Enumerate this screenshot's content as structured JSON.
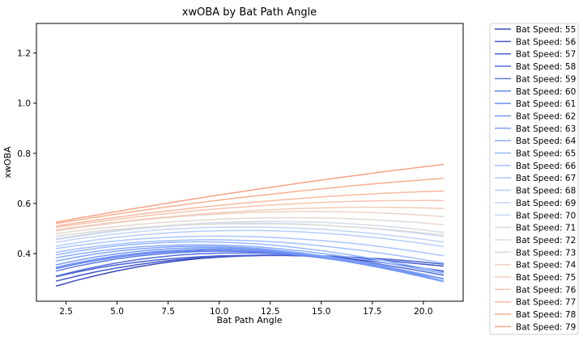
{
  "chart_data": {
    "type": "line",
    "title": "xwOBA by Bat Path Angle",
    "xlabel": "Bat Path Angle",
    "ylabel": "xwOBA",
    "xlim": [
      1.05,
      21.95
    ],
    "ylim": [
      0.21,
      1.318
    ],
    "xticks": [
      2.5,
      5.0,
      7.5,
      10.0,
      12.5,
      15.0,
      17.5,
      20.0
    ],
    "xtick_labels": [
      "2.5",
      "5.0",
      "7.5",
      "10.0",
      "12.5",
      "15.0",
      "17.5",
      "20.0"
    ],
    "yticks": [
      0.4,
      0.6,
      0.8,
      1.0,
      1.2
    ],
    "ytick_labels": [
      "0.4",
      "0.6",
      "0.8",
      "1.0",
      "1.2"
    ],
    "grid": false,
    "legend_position": "outside-right",
    "x": [
      2,
      3,
      4,
      5,
      6,
      7,
      8,
      9,
      10,
      11,
      12,
      13,
      14,
      15,
      16,
      17,
      18,
      19,
      20,
      21
    ],
    "series": [
      {
        "name": "Bat Speed: 55",
        "color": "#3b4cc0",
        "values": [
          0.27,
          0.293,
          0.313,
          0.331,
          0.347,
          0.36,
          0.371,
          0.38,
          0.386,
          0.39,
          0.392,
          0.393,
          0.391,
          0.387,
          0.381,
          0.373,
          0.364,
          0.353,
          0.342,
          0.33
        ]
      },
      {
        "name": "Bat Speed: 56",
        "color": "#4257c9",
        "values": [
          0.29,
          0.31,
          0.328,
          0.343,
          0.356,
          0.367,
          0.376,
          0.383,
          0.388,
          0.391,
          0.393,
          0.393,
          0.392,
          0.389,
          0.385,
          0.38,
          0.374,
          0.366,
          0.358,
          0.35
        ]
      },
      {
        "name": "Bat Speed: 57",
        "color": "#4a63d3",
        "values": [
          0.308,
          0.326,
          0.342,
          0.355,
          0.366,
          0.375,
          0.382,
          0.387,
          0.391,
          0.393,
          0.394,
          0.394,
          0.393,
          0.391,
          0.388,
          0.384,
          0.379,
          0.373,
          0.366,
          0.358
        ]
      },
      {
        "name": "Bat Speed: 58",
        "color": "#536edd",
        "values": [
          0.31,
          0.33,
          0.348,
          0.363,
          0.376,
          0.386,
          0.394,
          0.399,
          0.402,
          0.403,
          0.402,
          0.399,
          0.394,
          0.387,
          0.378,
          0.368,
          0.356,
          0.343,
          0.329,
          0.313
        ]
      },
      {
        "name": "Bat Speed: 59",
        "color": "#5b7ae5",
        "values": [
          0.33,
          0.349,
          0.365,
          0.379,
          0.39,
          0.398,
          0.404,
          0.408,
          0.41,
          0.409,
          0.406,
          0.401,
          0.394,
          0.385,
          0.374,
          0.362,
          0.348,
          0.333,
          0.317,
          0.3
        ]
      },
      {
        "name": "Bat Speed: 60",
        "color": "#6485ec",
        "values": [
          0.34,
          0.358,
          0.373,
          0.386,
          0.396,
          0.404,
          0.409,
          0.412,
          0.413,
          0.411,
          0.407,
          0.401,
          0.393,
          0.383,
          0.372,
          0.36,
          0.346,
          0.331,
          0.315,
          0.298
        ]
      },
      {
        "name": "Bat Speed: 61",
        "color": "#6e90f2",
        "values": [
          0.345,
          0.363,
          0.378,
          0.391,
          0.401,
          0.409,
          0.414,
          0.417,
          0.418,
          0.416,
          0.412,
          0.405,
          0.396,
          0.385,
          0.372,
          0.358,
          0.342,
          0.325,
          0.307,
          0.288
        ]
      },
      {
        "name": "Bat Speed: 62",
        "color": "#779af7",
        "values": [
          0.355,
          0.372,
          0.387,
          0.399,
          0.409,
          0.416,
          0.421,
          0.423,
          0.423,
          0.421,
          0.416,
          0.409,
          0.399,
          0.388,
          0.375,
          0.361,
          0.345,
          0.328,
          0.31,
          0.29
        ]
      },
      {
        "name": "Bat Speed: 63",
        "color": "#81a4fb",
        "values": [
          0.37,
          0.386,
          0.399,
          0.41,
          0.418,
          0.424,
          0.428,
          0.429,
          0.428,
          0.425,
          0.42,
          0.412,
          0.403,
          0.392,
          0.38,
          0.366,
          0.351,
          0.335,
          0.318,
          0.3
        ]
      },
      {
        "name": "Bat Speed: 64",
        "color": "#8badfd",
        "values": [
          0.383,
          0.397,
          0.409,
          0.419,
          0.426,
          0.431,
          0.434,
          0.435,
          0.434,
          0.431,
          0.426,
          0.419,
          0.411,
          0.401,
          0.39,
          0.378,
          0.365,
          0.351,
          0.336,
          0.32
        ]
      },
      {
        "name": "Bat Speed: 65",
        "color": "#96b7ff",
        "values": [
          0.395,
          0.409,
          0.421,
          0.431,
          0.438,
          0.443,
          0.446,
          0.447,
          0.446,
          0.443,
          0.438,
          0.431,
          0.422,
          0.412,
          0.4,
          0.387,
          0.373,
          0.358,
          0.342,
          0.325
        ]
      },
      {
        "name": "Bat Speed: 66",
        "color": "#a1c0ff",
        "values": [
          0.405,
          0.418,
          0.429,
          0.438,
          0.445,
          0.45,
          0.453,
          0.455,
          0.455,
          0.453,
          0.45,
          0.445,
          0.439,
          0.431,
          0.422,
          0.412,
          0.401,
          0.389,
          0.376,
          0.362
        ]
      },
      {
        "name": "Bat Speed: 67",
        "color": "#aac7fd",
        "values": [
          0.42,
          0.432,
          0.442,
          0.451,
          0.458,
          0.463,
          0.467,
          0.469,
          0.47,
          0.469,
          0.467,
          0.463,
          0.458,
          0.452,
          0.445,
          0.437,
          0.427,
          0.416,
          0.404,
          0.391
        ]
      },
      {
        "name": "Bat Speed: 68",
        "color": "#b5cdfa",
        "values": [
          0.43,
          0.443,
          0.455,
          0.465,
          0.473,
          0.48,
          0.485,
          0.489,
          0.491,
          0.492,
          0.492,
          0.49,
          0.487,
          0.482,
          0.476,
          0.469,
          0.461,
          0.451,
          0.44,
          0.428
        ]
      },
      {
        "name": "Bat Speed: 69",
        "color": "#c0d4f5",
        "values": [
          0.445,
          0.458,
          0.469,
          0.479,
          0.487,
          0.494,
          0.499,
          0.503,
          0.505,
          0.506,
          0.506,
          0.504,
          0.501,
          0.497,
          0.491,
          0.484,
          0.476,
          0.467,
          0.457,
          0.446
        ]
      },
      {
        "name": "Bat Speed: 70",
        "color": "#cad8ef",
        "values": [
          0.455,
          0.468,
          0.48,
          0.49,
          0.499,
          0.506,
          0.512,
          0.516,
          0.519,
          0.521,
          0.521,
          0.52,
          0.518,
          0.514,
          0.509,
          0.503,
          0.496,
          0.488,
          0.478,
          0.468
        ]
      },
      {
        "name": "Bat Speed: 71",
        "color": "#d4dbe6",
        "values": [
          0.46,
          0.472,
          0.483,
          0.493,
          0.502,
          0.509,
          0.515,
          0.52,
          0.524,
          0.527,
          0.528,
          0.528,
          0.527,
          0.525,
          0.521,
          0.516,
          0.51,
          0.503,
          0.494,
          0.484
        ]
      },
      {
        "name": "Bat Speed: 72",
        "color": "#dddcdc",
        "values": [
          0.47,
          0.48,
          0.489,
          0.497,
          0.504,
          0.509,
          0.513,
          0.516,
          0.518,
          0.519,
          0.519,
          0.518,
          0.516,
          0.513,
          0.509,
          0.504,
          0.498,
          0.491,
          0.483,
          0.474
        ]
      },
      {
        "name": "Bat Speed: 73",
        "color": "#e5d8d1",
        "values": [
          0.48,
          0.49,
          0.5,
          0.508,
          0.516,
          0.523,
          0.528,
          0.533,
          0.537,
          0.54,
          0.542,
          0.543,
          0.543,
          0.542,
          0.54,
          0.537,
          0.533,
          0.528,
          0.522,
          0.515
        ]
      },
      {
        "name": "Bat Speed: 74",
        "color": "#ecd3c5",
        "values": [
          0.49,
          0.502,
          0.513,
          0.523,
          0.532,
          0.54,
          0.547,
          0.553,
          0.558,
          0.562,
          0.565,
          0.567,
          0.568,
          0.568,
          0.567,
          0.565,
          0.562,
          0.558,
          0.553,
          0.547
        ]
      },
      {
        "name": "Bat Speed: 75",
        "color": "#f1ccb8",
        "values": [
          0.495,
          0.506,
          0.516,
          0.526,
          0.535,
          0.543,
          0.55,
          0.557,
          0.563,
          0.568,
          0.573,
          0.577,
          0.58,
          0.582,
          0.584,
          0.585,
          0.585,
          0.584,
          0.582,
          0.58
        ]
      },
      {
        "name": "Bat Speed: 76",
        "color": "#f5c4ac",
        "values": [
          0.505,
          0.516,
          0.527,
          0.537,
          0.547,
          0.556,
          0.564,
          0.572,
          0.579,
          0.585,
          0.591,
          0.596,
          0.6,
          0.604,
          0.607,
          0.609,
          0.611,
          0.612,
          0.612,
          0.612
        ]
      },
      {
        "name": "Bat Speed: 77",
        "color": "#f7ba9f",
        "values": [
          0.51,
          0.522,
          0.534,
          0.545,
          0.556,
          0.566,
          0.575,
          0.584,
          0.592,
          0.6,
          0.607,
          0.614,
          0.62,
          0.626,
          0.631,
          0.636,
          0.64,
          0.644,
          0.647,
          0.65
        ]
      },
      {
        "name": "Bat Speed: 78",
        "color": "#f7af91",
        "values": [
          0.52,
          0.533,
          0.546,
          0.558,
          0.57,
          0.581,
          0.592,
          0.603,
          0.613,
          0.623,
          0.632,
          0.641,
          0.65,
          0.658,
          0.666,
          0.674,
          0.681,
          0.688,
          0.694,
          0.7
        ]
      },
      {
        "name": "Bat Speed: 79",
        "color": "#f6a385",
        "values": [
          0.525,
          0.54,
          0.554,
          0.568,
          0.582,
          0.595,
          0.608,
          0.621,
          0.634,
          0.646,
          0.658,
          0.67,
          0.682,
          0.693,
          0.704,
          0.715,
          0.726,
          0.736,
          0.746,
          0.756
        ]
      }
    ]
  }
}
